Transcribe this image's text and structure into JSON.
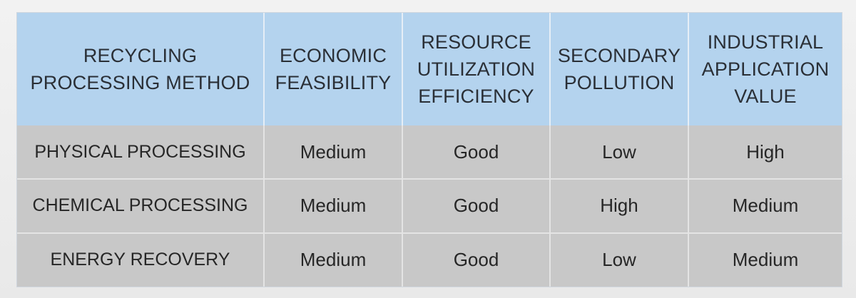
{
  "chart_data": {
    "type": "table",
    "title": "",
    "columns": [
      "RECYCLING PROCESSING METHOD",
      "ECONOMIC FEASIBILITY",
      "RESOURCE UTILIZATION EFFICIENCY",
      "SECONDARY POLLUTION",
      "INDUSTRIAL APPLICATION VALUE"
    ],
    "rows": [
      {
        "method": "PHYSICAL PROCESSING",
        "economic": "Medium",
        "efficiency": "Good",
        "pollution": "Low",
        "value": "High"
      },
      {
        "method": "CHEMICAL PROCESSING",
        "economic": "Medium",
        "efficiency": "Good",
        "pollution": "High",
        "value": "Medium"
      },
      {
        "method": "ENERGY RECOVERY",
        "economic": "Medium",
        "efficiency": "Good",
        "pollution": "Low",
        "value": "Medium"
      }
    ]
  },
  "colors": {
    "header_bg": "#b4d3ee",
    "body_bg": "#c8c8c8",
    "text": "#262626"
  }
}
